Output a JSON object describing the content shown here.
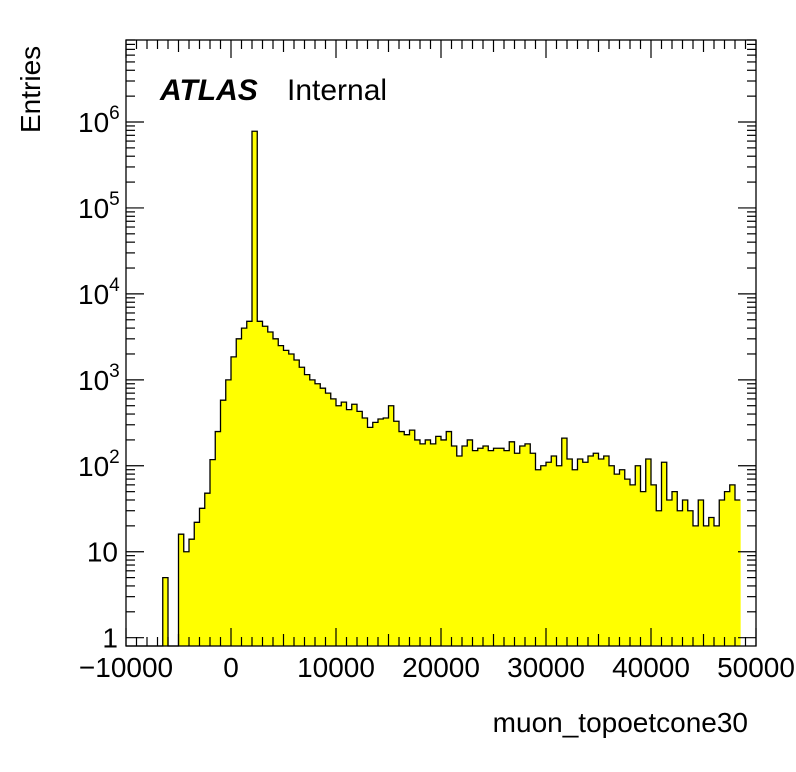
{
  "chart_data": {
    "type": "bar",
    "title": "",
    "xlabel": "muon_topoetcone30",
    "ylabel": "Entries",
    "xlim": [
      -10000,
      50000
    ],
    "ylim": [
      0.8,
      9000000
    ],
    "log_y": true,
    "grid": false,
    "fill_color": "#ffff00",
    "line_color": "#000000",
    "bin_width": 500,
    "x_start": -10000,
    "x_ticks": [
      {
        "value": -10000,
        "label": "−10000"
      },
      {
        "value": 0,
        "label": "0"
      },
      {
        "value": 10000,
        "label": "10000"
      },
      {
        "value": 20000,
        "label": "20000"
      },
      {
        "value": 30000,
        "label": "30000"
      },
      {
        "value": 40000,
        "label": "40000"
      },
      {
        "value": 50000,
        "label": "50000"
      }
    ],
    "y_ticks": [
      {
        "value": 1,
        "base": "1",
        "exp": ""
      },
      {
        "value": 10,
        "base": "10",
        "exp": ""
      },
      {
        "value": 100,
        "base": "10",
        "exp": "2"
      },
      {
        "value": 1000,
        "base": "10",
        "exp": "3"
      },
      {
        "value": 10000,
        "base": "10",
        "exp": "4"
      },
      {
        "value": 100000,
        "base": "10",
        "exp": "5"
      },
      {
        "value": 1000000,
        "base": "10",
        "exp": "6"
      }
    ],
    "values": [
      0,
      0,
      0,
      0,
      0,
      0,
      0,
      5,
      0,
      0,
      16,
      10,
      14,
      22,
      32,
      48,
      118,
      250,
      580,
      1000,
      1850,
      3000,
      4000,
      4800,
      780000,
      4800,
      4200,
      3600,
      3000,
      2500,
      2200,
      2000,
      1700,
      1400,
      1150,
      1000,
      900,
      800,
      700,
      600,
      500,
      550,
      450,
      520,
      430,
      360,
      280,
      320,
      350,
      360,
      500,
      330,
      250,
      230,
      260,
      200,
      180,
      200,
      180,
      220,
      200,
      250,
      170,
      130,
      170,
      200,
      150,
      160,
      170,
      150,
      160,
      160,
      150,
      190,
      140,
      170,
      180,
      140,
      90,
      100,
      110,
      130,
      100,
      210,
      120,
      90,
      120,
      110,
      130,
      140,
      120,
      130,
      100,
      80,
      90,
      70,
      60,
      100,
      50,
      120,
      60,
      30,
      110,
      40,
      50,
      30,
      40,
      30,
      20,
      40,
      20,
      25,
      20,
      40,
      50,
      60,
      40
    ]
  },
  "labels": {
    "atlas_bold": "ATLAS",
    "atlas_status": "Internal"
  }
}
